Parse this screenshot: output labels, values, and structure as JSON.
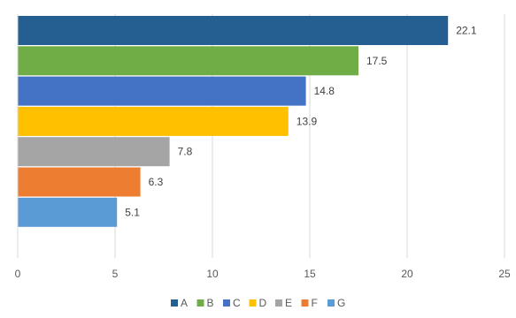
{
  "chart_data": {
    "type": "bar",
    "orientation": "horizontal",
    "categories": [
      "A",
      "B",
      "C",
      "D",
      "E",
      "F",
      "G"
    ],
    "values": [
      22.1,
      17.5,
      14.8,
      13.9,
      7.8,
      6.3,
      5.1
    ],
    "data_labels": [
      "22.1",
      "17.5",
      "14.8",
      "13.9",
      "7.8",
      "6.3",
      "5.1"
    ],
    "colors": [
      "#255E91",
      "#70AD47",
      "#4472C4",
      "#FFC000",
      "#A5A5A5",
      "#ED7D31",
      "#5B9BD5"
    ],
    "title": "",
    "xlabel": "",
    "ylabel": "",
    "xlim": [
      0,
      25
    ],
    "x_ticks": [
      0,
      5,
      10,
      15,
      20,
      25
    ],
    "x_tick_labels": [
      "0",
      "5",
      "10",
      "15",
      "20",
      "25"
    ],
    "grid": "vertical",
    "legend": {
      "position": "bottom",
      "entries": [
        "A",
        "B",
        "C",
        "D",
        "E",
        "F",
        "G"
      ]
    }
  }
}
